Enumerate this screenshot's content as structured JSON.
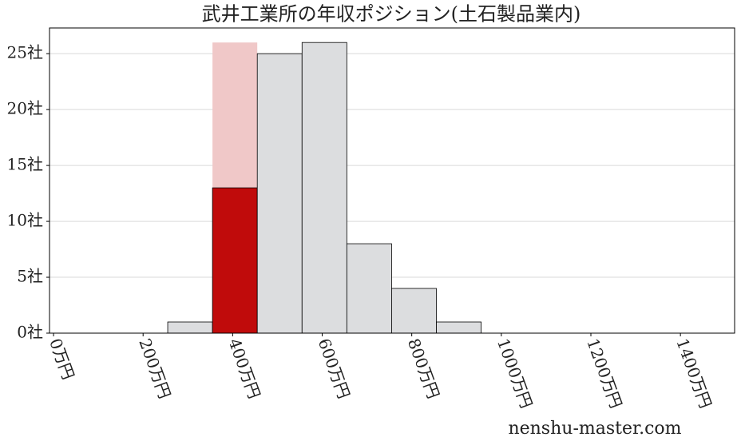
{
  "chart_data": {
    "type": "histogram",
    "title": "武井工業所の年収ポジション(土石製品業内)",
    "bins": [
      255,
      355,
      455,
      555,
      655,
      755,
      855,
      955
    ],
    "values": [
      1,
      26,
      25,
      26,
      8,
      4,
      1
    ],
    "colors": [
      "#dcdddf",
      "#f0c8c8",
      "#dcdddf",
      "#dcdddf",
      "#dcdddf",
      "#dcdddf",
      "#dcdddf"
    ],
    "highlight_values": [
      null,
      13,
      null,
      null,
      null,
      null,
      null
    ],
    "highlight_color": "#c00b0b",
    "xlim": [
      -9,
      1521
    ],
    "ylim": [
      0,
      27.3
    ],
    "xticks": [
      {
        "value": 0,
        "label": "0万円"
      },
      {
        "value": 200,
        "label": "200万円"
      },
      {
        "value": 400,
        "label": "400万円"
      },
      {
        "value": 600,
        "label": "600万円"
      },
      {
        "value": 800,
        "label": "800万円"
      },
      {
        "value": 1000,
        "label": "1000万円"
      },
      {
        "value": 1200,
        "label": "1200万円"
      },
      {
        "value": 1400,
        "label": "1400万円"
      }
    ],
    "yticks": [
      {
        "value": 0,
        "label": "0社"
      },
      {
        "value": 5,
        "label": "5社"
      },
      {
        "value": 10,
        "label": "10社"
      },
      {
        "value": 15,
        "label": "15社"
      },
      {
        "value": 20,
        "label": "20社"
      },
      {
        "value": 25,
        "label": "25社"
      }
    ],
    "grid": true,
    "watermark": "nenshu-master.com"
  }
}
